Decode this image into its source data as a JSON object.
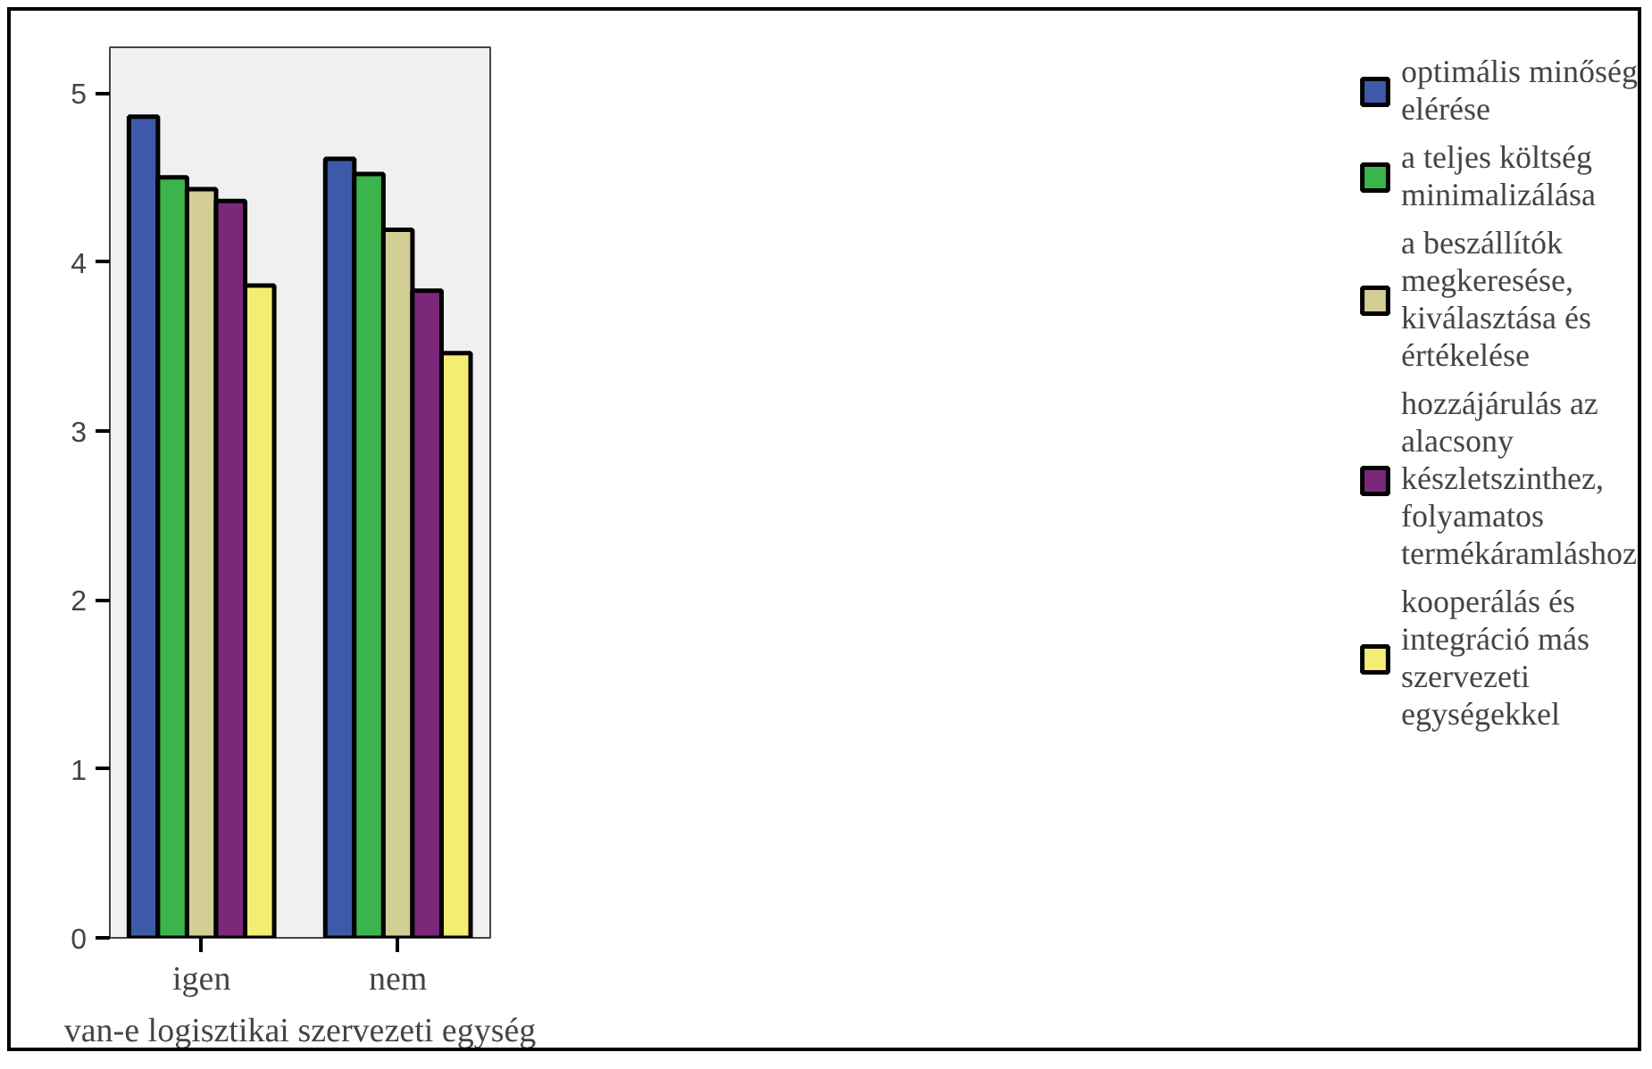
{
  "chart_data": {
    "type": "bar",
    "xlabel": "van-e logisztikai szervezeti egység",
    "categories": [
      "igen",
      "nem"
    ],
    "series": [
      {
        "name": "optimális minőség elérése",
        "color": "#3d5aa8",
        "values": [
          4.86,
          4.61
        ]
      },
      {
        "name": "a teljes költség minimalizálása",
        "color": "#3bb54b",
        "values": [
          4.5,
          4.52
        ]
      },
      {
        "name": "a beszállítók megkeresése, kiválasztása és értékelése",
        "color": "#d3cd96",
        "values": [
          4.43,
          4.19
        ]
      },
      {
        "name": "hozzájárulás az alacsony készletszinthez, folyamatos termékáramláshoz",
        "color": "#7b287b",
        "values": [
          4.36,
          3.83
        ]
      },
      {
        "name": "kooperálás és integráció más szervezeti egységekkel",
        "color": "#f3ee73",
        "values": [
          3.86,
          3.46
        ]
      }
    ],
    "ylim": [
      0,
      5.27
    ],
    "yticks": [
      0,
      1,
      2,
      3,
      4,
      5
    ],
    "grid": false,
    "legend": "right"
  }
}
